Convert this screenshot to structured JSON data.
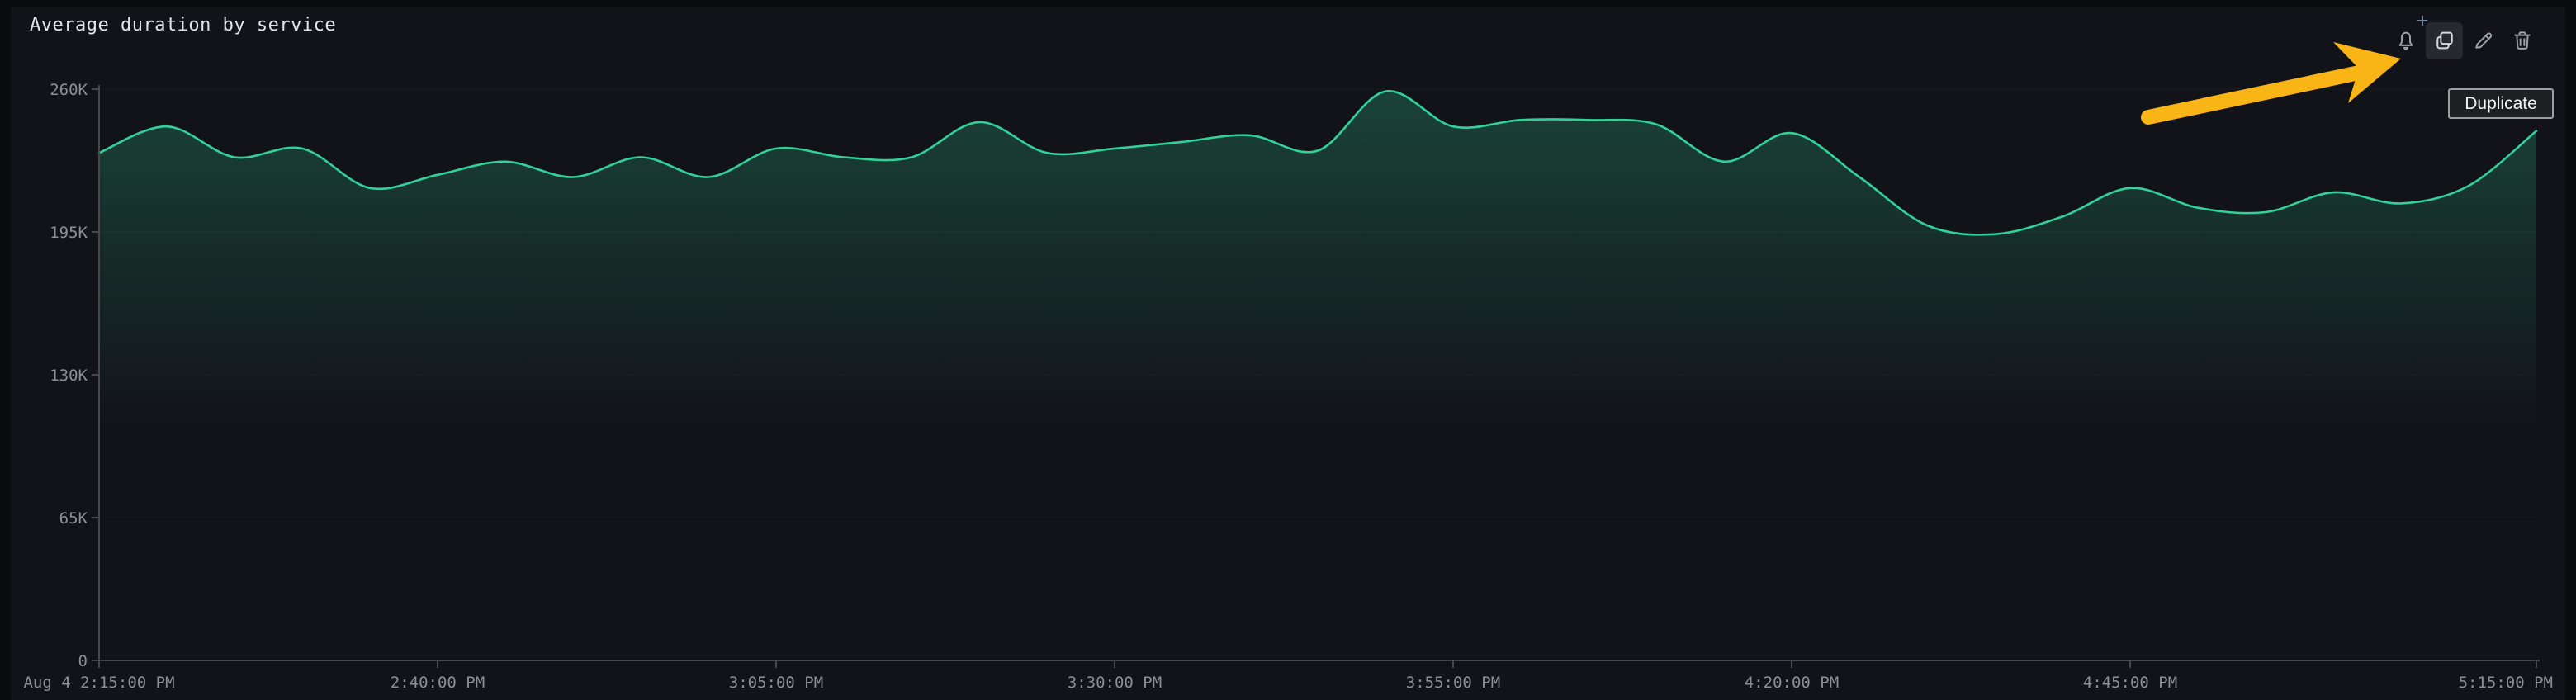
{
  "panel": {
    "title": "Average duration by service"
  },
  "toolbar": {
    "buttons": [
      {
        "label": "Create alert",
        "icon": "bell-plus-icon"
      },
      {
        "label": "Duplicate",
        "icon": "copy-icon",
        "state": "hovered"
      },
      {
        "label": "Edit",
        "icon": "pencil-icon"
      },
      {
        "label": "Delete",
        "icon": "trash-icon"
      }
    ]
  },
  "tooltip": {
    "text": "Duplicate"
  },
  "annotation": {
    "type": "arrow",
    "color": "#f9b515",
    "points_to": "duplicate-button"
  },
  "colors": {
    "line": "#31d199",
    "page_bg": "#0a0b0d",
    "panel_bg": "#121318",
    "tick_text": "#8c9096",
    "axis": "#45484d",
    "icon": "#9ba1a8",
    "icon_active": "#d5d8dc",
    "hover_bg": "#26292e",
    "plus": "#7e95b8",
    "tooltip_border": "#9b9ea3",
    "arrow": "#f9b515"
  },
  "chart_data": {
    "type": "line",
    "title": "Average duration by service",
    "xlabel": "",
    "ylabel": "",
    "legend": "none",
    "grid": "faint-horizontal",
    "ylim": [
      0,
      260000
    ],
    "x_range_minutes": 180,
    "y_ticks": [
      {
        "label": "0",
        "value": 0
      },
      {
        "label": "65K",
        "value": 65000
      },
      {
        "label": "130K",
        "value": 130000
      },
      {
        "label": "195K",
        "value": 195000
      },
      {
        "label": "260K",
        "value": 260000
      }
    ],
    "x_ticks": [
      {
        "label": "Aug 4 2:15:00 PM",
        "min": 0,
        "align": "middle"
      },
      {
        "label": "2:40:00 PM",
        "min": 25,
        "align": "middle"
      },
      {
        "label": "3:05:00 PM",
        "min": 50,
        "align": "middle"
      },
      {
        "label": "3:30:00 PM",
        "min": 75,
        "align": "middle"
      },
      {
        "label": "3:55:00 PM",
        "min": 100,
        "align": "middle"
      },
      {
        "label": "4:20:00 PM",
        "min": 125,
        "align": "middle"
      },
      {
        "label": "4:45:00 PM",
        "min": 150,
        "align": "middle"
      },
      {
        "label": "5:15:00 PM",
        "min": 180,
        "align": "end"
      }
    ],
    "series": [
      {
        "name": "average duration",
        "color": "#31d199",
        "points": [
          {
            "t": "2:15 PM",
            "v": 231000
          },
          {
            "t": "2:20 PM",
            "v": 243000
          },
          {
            "t": "2:25 PM",
            "v": 229000
          },
          {
            "t": "2:30 PM",
            "v": 233000
          },
          {
            "t": "2:35 PM",
            "v": 215000
          },
          {
            "t": "2:40 PM",
            "v": 221000
          },
          {
            "t": "2:45 PM",
            "v": 227000
          },
          {
            "t": "2:50 PM",
            "v": 220000
          },
          {
            "t": "2:55 PM",
            "v": 229000
          },
          {
            "t": "3:00 PM",
            "v": 220000
          },
          {
            "t": "3:05 PM",
            "v": 233000
          },
          {
            "t": "3:10 PM",
            "v": 229000
          },
          {
            "t": "3:15 PM",
            "v": 229000
          },
          {
            "t": "3:20 PM",
            "v": 245000
          },
          {
            "t": "3:25 PM",
            "v": 231000
          },
          {
            "t": "3:30 PM",
            "v": 233000
          },
          {
            "t": "3:35 PM",
            "v": 236000
          },
          {
            "t": "3:40 PM",
            "v": 239000
          },
          {
            "t": "3:45 PM",
            "v": 232000
          },
          {
            "t": "3:50 PM",
            "v": 259000
          },
          {
            "t": "3:55 PM",
            "v": 243000
          },
          {
            "t": "4:00 PM",
            "v": 246000
          },
          {
            "t": "4:05 PM",
            "v": 246000
          },
          {
            "t": "4:10 PM",
            "v": 244000
          },
          {
            "t": "4:15 PM",
            "v": 227000
          },
          {
            "t": "4:20 PM",
            "v": 240000
          },
          {
            "t": "4:25 PM",
            "v": 220000
          },
          {
            "t": "4:30 PM",
            "v": 198000
          },
          {
            "t": "4:35 PM",
            "v": 194000
          },
          {
            "t": "4:40 PM",
            "v": 202000
          },
          {
            "t": "4:45 PM",
            "v": 215000
          },
          {
            "t": "4:50 PM",
            "v": 206000
          },
          {
            "t": "4:55 PM",
            "v": 204000
          },
          {
            "t": "5:00 PM",
            "v": 213000
          },
          {
            "t": "5:05 PM",
            "v": 208000
          },
          {
            "t": "5:10 PM",
            "v": 216000
          },
          {
            "t": "5:15 PM",
            "v": 241000
          }
        ]
      }
    ]
  }
}
